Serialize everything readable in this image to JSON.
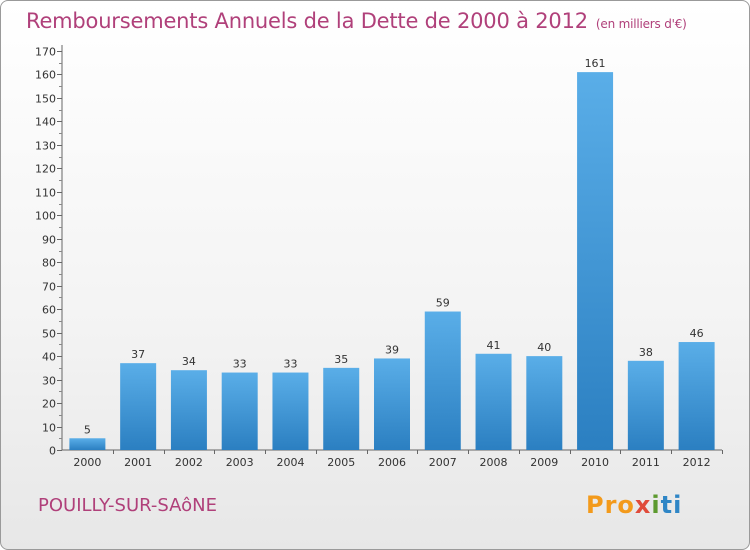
{
  "chart_data": {
    "type": "bar",
    "title": "Remboursements Annuels de la Dette de 2000 à 2012",
    "subtitle": "(en milliers d'€)",
    "categories": [
      "2000",
      "2001",
      "2002",
      "2003",
      "2004",
      "2005",
      "2006",
      "2007",
      "2008",
      "2009",
      "2010",
      "2011",
      "2012"
    ],
    "values": [
      5,
      37,
      34,
      33,
      33,
      35,
      39,
      59,
      41,
      40,
      161,
      38,
      46
    ],
    "ylim": [
      0,
      170
    ],
    "yticks": [
      0,
      10,
      20,
      30,
      40,
      50,
      60,
      70,
      80,
      90,
      100,
      110,
      120,
      130,
      140,
      150,
      160,
      170
    ],
    "xlabel": "",
    "ylabel": "",
    "grid": false
  },
  "footer": {
    "commune": "POUILLY-SUR-SAôNE",
    "logo": {
      "p1": "Pro",
      "p2": "x",
      "p3": "i",
      "p4": "ti"
    }
  },
  "colors": {
    "bar_top": "#5aaee8",
    "bar_bottom": "#2b7fc1",
    "title": "#b0407a"
  }
}
